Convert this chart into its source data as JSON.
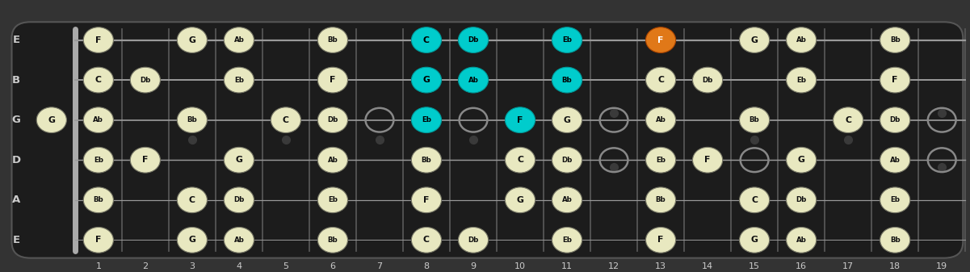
{
  "bg_color": "#333333",
  "fretboard_color": "#1c1c1c",
  "string_color": "#999999",
  "fret_color": "#555555",
  "nut_color": "#aaaaaa",
  "dot_color_normal": "#e8e8c0",
  "dot_color_cyan": "#00cccc",
  "dot_color_orange": "#e07818",
  "dot_text_normal": "#111111",
  "dot_text_cyan": "#000000",
  "dot_text_orange": "#ffffff",
  "open_dot_color": "#888888",
  "label_color": "#cccccc",
  "fret_number_color": "#cccccc",
  "notes": [
    {
      "string": 6,
      "fret": 1,
      "label": "F",
      "type": "normal"
    },
    {
      "string": 6,
      "fret": 3,
      "label": "G",
      "type": "normal"
    },
    {
      "string": 6,
      "fret": 4,
      "label": "Ab",
      "type": "normal"
    },
    {
      "string": 6,
      "fret": 6,
      "label": "Bb",
      "type": "normal"
    },
    {
      "string": 6,
      "fret": 8,
      "label": "C",
      "type": "cyan"
    },
    {
      "string": 6,
      "fret": 9,
      "label": "Db",
      "type": "cyan"
    },
    {
      "string": 6,
      "fret": 11,
      "label": "Eb",
      "type": "cyan"
    },
    {
      "string": 6,
      "fret": 13,
      "label": "F",
      "type": "orange"
    },
    {
      "string": 6,
      "fret": 15,
      "label": "G",
      "type": "normal"
    },
    {
      "string": 6,
      "fret": 16,
      "label": "Ab",
      "type": "normal"
    },
    {
      "string": 6,
      "fret": 18,
      "label": "Bb",
      "type": "normal"
    },
    {
      "string": 5,
      "fret": 1,
      "label": "C",
      "type": "normal"
    },
    {
      "string": 5,
      "fret": 2,
      "label": "Db",
      "type": "normal"
    },
    {
      "string": 5,
      "fret": 4,
      "label": "Eb",
      "type": "normal"
    },
    {
      "string": 5,
      "fret": 6,
      "label": "F",
      "type": "normal"
    },
    {
      "string": 5,
      "fret": 8,
      "label": "G",
      "type": "cyan"
    },
    {
      "string": 5,
      "fret": 9,
      "label": "Ab",
      "type": "cyan"
    },
    {
      "string": 5,
      "fret": 11,
      "label": "Bb",
      "type": "cyan"
    },
    {
      "string": 5,
      "fret": 13,
      "label": "C",
      "type": "normal"
    },
    {
      "string": 5,
      "fret": 14,
      "label": "Db",
      "type": "normal"
    },
    {
      "string": 5,
      "fret": 16,
      "label": "Eb",
      "type": "normal"
    },
    {
      "string": 5,
      "fret": 18,
      "label": "F",
      "type": "normal"
    },
    {
      "string": 4,
      "fret": 0,
      "label": "G",
      "type": "normal"
    },
    {
      "string": 4,
      "fret": 1,
      "label": "Ab",
      "type": "normal"
    },
    {
      "string": 4,
      "fret": 3,
      "label": "Bb",
      "type": "normal"
    },
    {
      "string": 4,
      "fret": 5,
      "label": "C",
      "type": "normal"
    },
    {
      "string": 4,
      "fret": 6,
      "label": "Db",
      "type": "normal"
    },
    {
      "string": 4,
      "fret": 8,
      "label": "Eb",
      "type": "cyan"
    },
    {
      "string": 4,
      "fret": 10,
      "label": "F",
      "type": "cyan"
    },
    {
      "string": 4,
      "fret": 11,
      "label": "G",
      "type": "normal"
    },
    {
      "string": 4,
      "fret": 13,
      "label": "Ab",
      "type": "normal"
    },
    {
      "string": 4,
      "fret": 15,
      "label": "Bb",
      "type": "normal"
    },
    {
      "string": 4,
      "fret": 17,
      "label": "C",
      "type": "normal"
    },
    {
      "string": 4,
      "fret": 18,
      "label": "Db",
      "type": "normal"
    },
    {
      "string": 3,
      "fret": 1,
      "label": "Eb",
      "type": "normal"
    },
    {
      "string": 3,
      "fret": 2,
      "label": "F",
      "type": "normal"
    },
    {
      "string": 3,
      "fret": 4,
      "label": "G",
      "type": "normal"
    },
    {
      "string": 3,
      "fret": 6,
      "label": "Ab",
      "type": "normal"
    },
    {
      "string": 3,
      "fret": 8,
      "label": "Bb",
      "type": "normal"
    },
    {
      "string": 3,
      "fret": 10,
      "label": "C",
      "type": "normal"
    },
    {
      "string": 3,
      "fret": 11,
      "label": "Db",
      "type": "normal"
    },
    {
      "string": 3,
      "fret": 13,
      "label": "Eb",
      "type": "normal"
    },
    {
      "string": 3,
      "fret": 14,
      "label": "F",
      "type": "normal"
    },
    {
      "string": 3,
      "fret": 16,
      "label": "G",
      "type": "normal"
    },
    {
      "string": 3,
      "fret": 18,
      "label": "Ab",
      "type": "normal"
    },
    {
      "string": 2,
      "fret": 1,
      "label": "Bb",
      "type": "normal"
    },
    {
      "string": 2,
      "fret": 3,
      "label": "C",
      "type": "normal"
    },
    {
      "string": 2,
      "fret": 4,
      "label": "Db",
      "type": "normal"
    },
    {
      "string": 2,
      "fret": 6,
      "label": "Eb",
      "type": "normal"
    },
    {
      "string": 2,
      "fret": 8,
      "label": "F",
      "type": "normal"
    },
    {
      "string": 2,
      "fret": 10,
      "label": "G",
      "type": "normal"
    },
    {
      "string": 2,
      "fret": 11,
      "label": "Ab",
      "type": "normal"
    },
    {
      "string": 2,
      "fret": 13,
      "label": "Bb",
      "type": "normal"
    },
    {
      "string": 2,
      "fret": 15,
      "label": "C",
      "type": "normal"
    },
    {
      "string": 2,
      "fret": 16,
      "label": "Db",
      "type": "normal"
    },
    {
      "string": 2,
      "fret": 18,
      "label": "Eb",
      "type": "normal"
    },
    {
      "string": 1,
      "fret": 1,
      "label": "F",
      "type": "normal"
    },
    {
      "string": 1,
      "fret": 3,
      "label": "G",
      "type": "normal"
    },
    {
      "string": 1,
      "fret": 4,
      "label": "Ab",
      "type": "normal"
    },
    {
      "string": 1,
      "fret": 6,
      "label": "Bb",
      "type": "normal"
    },
    {
      "string": 1,
      "fret": 8,
      "label": "C",
      "type": "normal"
    },
    {
      "string": 1,
      "fret": 9,
      "label": "Db",
      "type": "normal"
    },
    {
      "string": 1,
      "fret": 11,
      "label": "Eb",
      "type": "normal"
    },
    {
      "string": 1,
      "fret": 13,
      "label": "F",
      "type": "normal"
    },
    {
      "string": 1,
      "fret": 15,
      "label": "G",
      "type": "normal"
    },
    {
      "string": 1,
      "fret": 16,
      "label": "Ab",
      "type": "normal"
    },
    {
      "string": 1,
      "fret": 18,
      "label": "Bb",
      "type": "normal"
    }
  ],
  "open_circles": [
    {
      "string": 4,
      "fret": 7
    },
    {
      "string": 4,
      "fret": 9
    },
    {
      "string": 4,
      "fret": 12
    },
    {
      "string": 4,
      "fret": 15
    },
    {
      "string": 4,
      "fret": 19
    },
    {
      "string": 3,
      "fret": 12
    },
    {
      "string": 3,
      "fret": 15
    },
    {
      "string": 3,
      "fret": 19
    }
  ],
  "string_display": {
    "1": "E",
    "2": "A",
    "3": "D",
    "4": "G",
    "5": "B",
    "6": "E"
  }
}
